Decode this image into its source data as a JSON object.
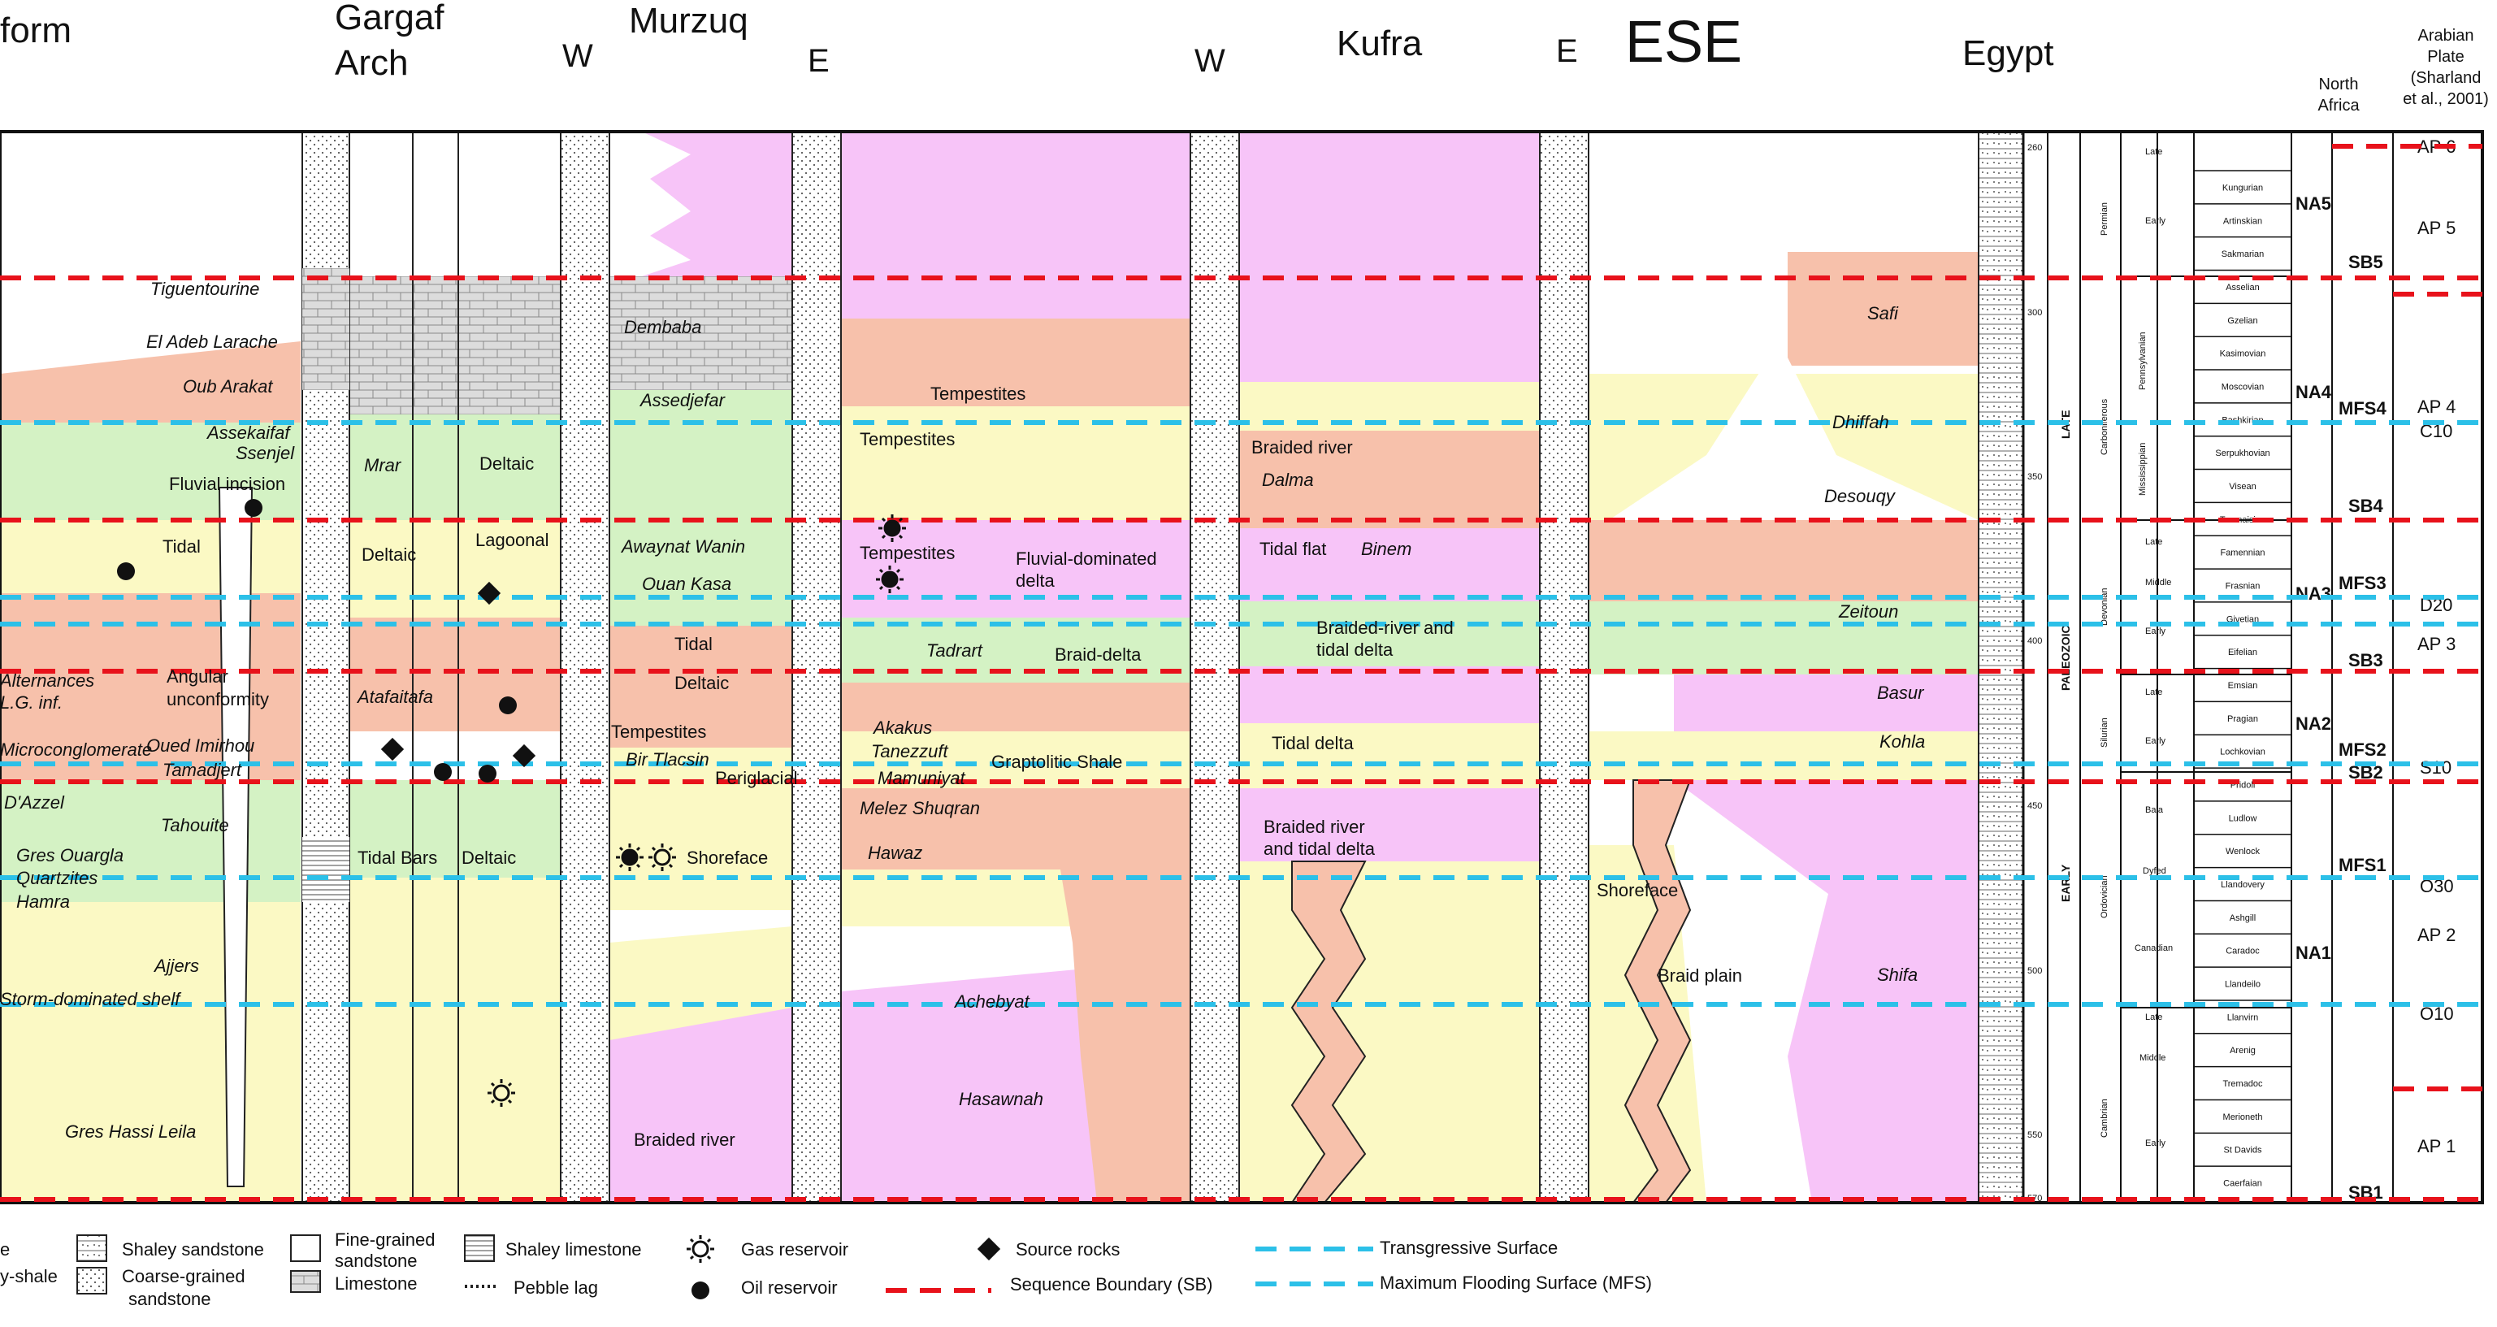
{
  "headers": {
    "platform": "form",
    "gargaf_1": "Gargaf",
    "gargaf_2": "Arch",
    "w1": "W",
    "murzuq": "Murzuq",
    "e1": "E",
    "w2": "W",
    "kufra": "Kufra",
    "e2": "E",
    "ese": "ESE",
    "egypt": "Egypt",
    "north_africa_1": "North",
    "north_africa_2": "Africa",
    "arabian_1": "Arabian",
    "arabian_2": "Plate",
    "arabian_3": "(Sharland",
    "arabian_4": "et al., 2001)"
  },
  "units_left": {
    "tiguentourine": "Tiguentourine",
    "el_adeb": "El Adeb Larache",
    "oub_arakat": "Oub Arakat",
    "assekaifaf": "Assekaifaf",
    "ssenjel": "Ssenjel",
    "fluvial_incision": "Fluvial incision",
    "tidal": "Tidal",
    "alternances_1": "Alternances",
    "alternances_2": "L.G. inf.",
    "angular_1": "Angular",
    "angular_2": "unconformity",
    "microconglomerate": "Microconglomerate",
    "oued_imirhou": "Oued Imirhou",
    "tamadjert": "Tamadjert",
    "d_azzel": "D'Azzel",
    "tahouite": "Tahouite",
    "gres_ouargla": "Gres Ouargla",
    "quartzites": "Quartzites",
    "hamra": "Hamra",
    "ajjers": "Ajjers",
    "storm_shelf": "Storm-dominated shelf",
    "gres_hassi_leila": "Gres Hassi Leila"
  },
  "units_gargaf": {
    "mrar": "Mrar",
    "deltaic_1": "Deltaic",
    "deltaic_2": "Deltaic",
    "lagoonal": "Lagoonal",
    "atafaitafa": "Atafaitafa",
    "tidal_bars": "Tidal Bars",
    "deltaic_3": "Deltaic"
  },
  "units_murzuq": {
    "dembaba": "Dembaba",
    "assedjefar": "Assedjefar",
    "awaynat_wanin": "Awaynat Wanin",
    "ouan_kasa": "Ouan Kasa",
    "tidal": "Tidal",
    "deltaic": "Deltaic",
    "tempestites": "Tempestites",
    "bir_tlacsin": "Bir Tlacsin",
    "periglacial": "Periglacial",
    "shoreface": "Shoreface",
    "braided_river": "Braided river"
  },
  "units_murzuq_e": {
    "tempestites_1": "Tempestites",
    "tempestites_2": "Tempestites",
    "tempestites_3": "Tempestites",
    "fluvial_delta_1": "Fluvial-dominated",
    "fluvial_delta_2": "delta",
    "tadrart": "Tadrart",
    "braid_delta": "Braid-delta",
    "akakus": "Akakus",
    "tanezzuft": "Tanezzuft",
    "graptolitic": "Graptolitic Shale",
    "mamuniyat": "Mamuniyat",
    "melez_shuqran": "Melez Shuqran",
    "hawaz": "Hawaz",
    "achebyat": "Achebyat",
    "hasawnah": "Hasawnah"
  },
  "units_kufra": {
    "braided_river_1": "Braided river",
    "dalma": "Dalma",
    "tidal_flat": "Tidal flat",
    "binem": "Binem",
    "braided_tidal_1": "Braided-river and",
    "braided_tidal_2": "tidal delta",
    "tidal_delta": "Tidal delta",
    "braided_river_2": "Braided river",
    "braided_river_3": "and tidal delta"
  },
  "units_egypt": {
    "safi": "Safi",
    "dhiffah": "Dhiffah",
    "desouqy": "Desouqy",
    "zeitoun": "Zeitoun",
    "basur": "Basur",
    "kohla": "Kohla",
    "shoreface": "Shoreface",
    "braid_plain": "Braid plain",
    "shifa": "Shifa"
  },
  "age_scale": [
    "260",
    "300",
    "350",
    "400",
    "450",
    "500",
    "550",
    "570"
  ],
  "era": {
    "late": "LATE",
    "paleozoic": "PALEOZOIC",
    "early": "EARLY"
  },
  "periods": [
    "Permian",
    "Carboniferous",
    "Devonian",
    "Silurian",
    "Ordovician",
    "Cambrian"
  ],
  "sub_periods": {
    "perm_late": "Late",
    "perm_early": "Early",
    "carb_penn": "Pennsylvanian",
    "carb_miss": "Mississippian",
    "dev_late": "Late",
    "dev_middle": "Middle",
    "dev_early": "Early",
    "sil_late": "Late",
    "sil_early": "Early",
    "ord_bala": "Bala",
    "ord_dyfed": "Dyfed",
    "ord_canadian": "Canadian",
    "cam_late": "Late",
    "cam_middle": "Middle",
    "cam_early": "Early"
  },
  "stages": [
    "Kungurian",
    "Artinskian",
    "Sakmarian",
    "Asselian",
    "Gzelian",
    "Kasimovian",
    "Moscovian",
    "Bashkirian",
    "Serpukhovian",
    "Visean",
    "Tournaisian",
    "Famennian",
    "Frasnian",
    "Givetian",
    "Eifelian",
    "Emsian",
    "Pragian",
    "Lochkovian",
    "Pridoli",
    "Ludlow",
    "Wenlock",
    "Llandovery",
    "Ashgill",
    "Caradoc",
    "Llandeilo",
    "Llanvirn",
    "Arenig",
    "Tremadoc",
    "Merioneth",
    "St Davids",
    "Caerfaian"
  ],
  "north_africa": {
    "na5": "NA5",
    "na4": "NA4",
    "na3": "NA3",
    "na2": "NA2",
    "na1": "NA1",
    "sb5": "SB5",
    "mfs4": "MFS4",
    "sb4": "SB4",
    "mfs3": "MFS3",
    "sb3": "SB3",
    "mfs2": "MFS2",
    "sb2": "SB2",
    "mfs1": "MFS1",
    "sb1": "SB1"
  },
  "arabian_plate": {
    "ap6": "AP 6",
    "ap5": "AP 5",
    "ap4": "AP 4",
    "c10": "C10",
    "d20": "D20",
    "ap3": "AP 3",
    "s10": "S10",
    "o30": "O30",
    "ap2": "AP 2",
    "o10": "O10",
    "ap1": "AP 1"
  },
  "legend": {
    "shale_frag": "e",
    "silty_shale_frag": "y-shale",
    "shaley_sandstone": "Shaley sandstone",
    "coarse_1": "Coarse-grained",
    "coarse_2": "sandstone",
    "fine_1": "Fine-grained",
    "fine_2": "sandstone",
    "limestone": "Limestone",
    "shaley_limestone": "Shaley limestone",
    "pebble_lag": "Pebble lag",
    "gas_reservoir": "Gas reservoir",
    "oil_reservoir": "Oil reservoir",
    "source_rocks": "Source rocks",
    "sequence_boundary": "Sequence Boundary (SB)",
    "transgressive": "Transgressive Surface",
    "mfs": "Maximum Flooding Surface (MFS)"
  },
  "colors": {
    "pink": "#f7c1ab",
    "yellow": "#fbf9c4",
    "green": "#d4f2c4",
    "magenta": "#f7c4f8",
    "sb_red": "#e8121b",
    "mfs_cyan": "#2cc0e8"
  }
}
